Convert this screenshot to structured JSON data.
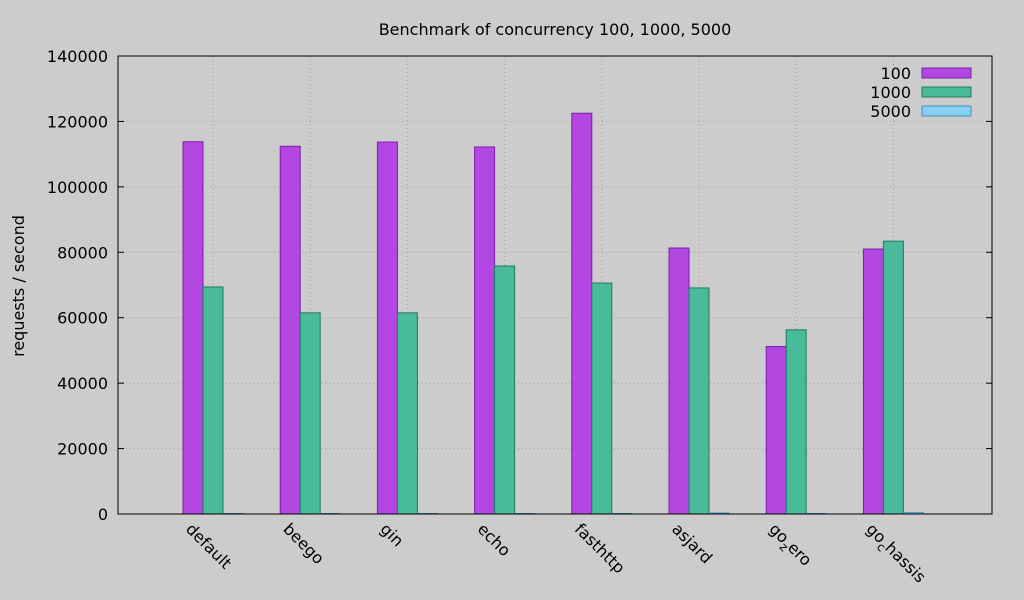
{
  "chart_data": {
    "type": "bar",
    "title": "Benchmark of concurrency 100, 1000, 5000",
    "xlabel": "",
    "ylabel": "requests / second",
    "ylim": [
      0,
      140000
    ],
    "yticks": [
      0,
      20000,
      40000,
      60000,
      80000,
      100000,
      120000,
      140000
    ],
    "grid": true,
    "legend_position": "top-right",
    "categories": [
      {
        "base": "default",
        "sub": "",
        "rest": ""
      },
      {
        "base": "beego",
        "sub": "",
        "rest": ""
      },
      {
        "base": "gin",
        "sub": "",
        "rest": ""
      },
      {
        "base": "echo",
        "sub": "",
        "rest": ""
      },
      {
        "base": "fasthttp",
        "sub": "",
        "rest": ""
      },
      {
        "base": "asjard",
        "sub": "",
        "rest": ""
      },
      {
        "base": "go",
        "sub": "z",
        "rest": "ero"
      },
      {
        "base": "go",
        "sub": "c",
        "rest": "hassis"
      }
    ],
    "series": [
      {
        "name": "100",
        "color": "#b347e2",
        "stroke": "#7a1fa8",
        "values": [
          113800,
          112400,
          113700,
          112200,
          122500,
          81300,
          51200,
          81000
        ]
      },
      {
        "name": "1000",
        "color": "#49ba9a",
        "stroke": "#1f7a60",
        "values": [
          69400,
          61500,
          61500,
          75800,
          70600,
          69100,
          56300,
          83400
        ]
      },
      {
        "name": "5000",
        "color": "#89cff0",
        "stroke": "#3a8fc0",
        "values": [
          150,
          150,
          150,
          150,
          150,
          0,
          150,
          400
        ]
      }
    ]
  }
}
